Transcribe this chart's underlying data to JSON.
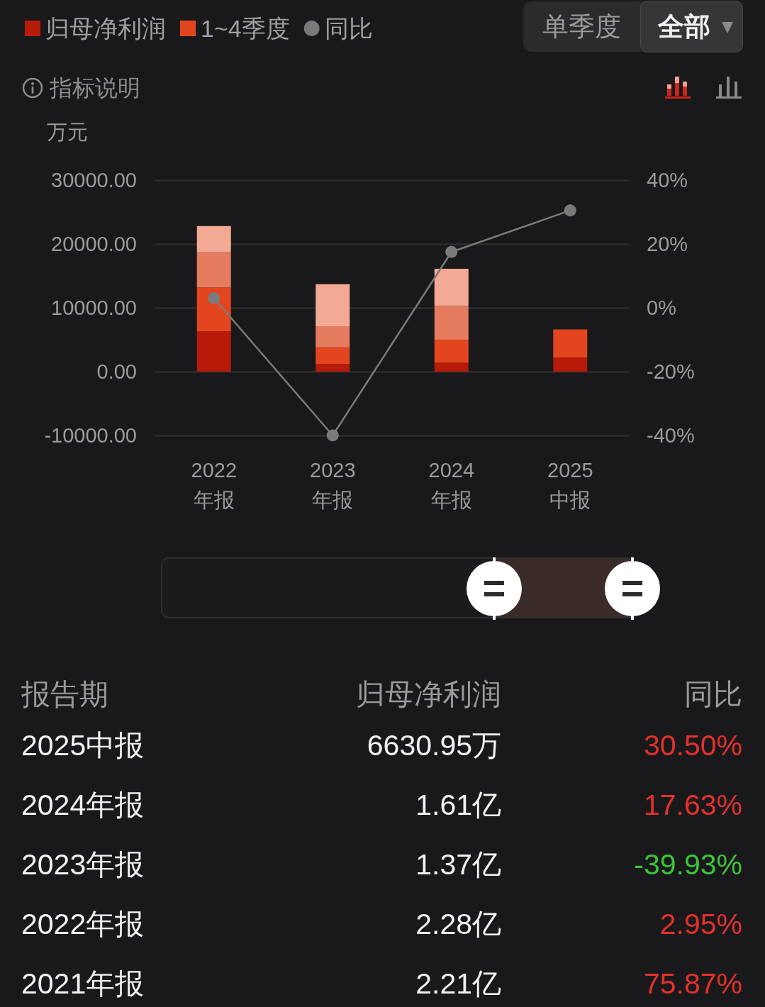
{
  "chart_data": [
    {
      "type": "bar",
      "stacked": true,
      "ylabel": "万元",
      "annotations": [
        "指标说明",
        "单季度",
        "全部"
      ],
      "categories": [
        "2022\n年报",
        "2023\n年报",
        "2024\n年报",
        "2025\n中报"
      ],
      "series": [
        {
          "name": "归母净利润",
          "color": "#b81a0a",
          "values": [
            6300,
            1200,
            1400,
            2200
          ]
        },
        {
          "name": "1~4季度",
          "color": "#e3461e",
          "values": [
            6900,
            2600,
            3600,
            4400
          ]
        },
        {
          "color": "#e57b5f",
          "values": [
            5500,
            3300,
            5300,
            null
          ]
        },
        {
          "color": "#f3aa95",
          "values": [
            4100,
            6600,
            5800,
            null
          ]
        },
        {
          "name": "同比",
          "type": "line",
          "axis": "y2",
          "color": "#7a7a7a",
          "values": [
            3,
            -40,
            17.5,
            30.5
          ]
        }
      ],
      "ylim": [
        -10000,
        30000
      ],
      "yticks": [
        {
          "value": -10000,
          "label": "-10000.00"
        },
        {
          "value": 0,
          "label": "0.00"
        },
        {
          "value": 10000,
          "label": "10000.00"
        },
        {
          "value": 20000,
          "label": "20000.00"
        },
        {
          "value": 30000,
          "label": "30000.00"
        }
      ],
      "y2lim": [
        -40,
        40
      ],
      "y2ticks": [
        {
          "value": -40,
          "label": "-40%"
        },
        {
          "value": -20,
          "label": "-20%"
        },
        {
          "value": 0,
          "label": "0%"
        },
        {
          "value": 20,
          "label": "20%"
        },
        {
          "value": 40,
          "label": "40%"
        }
      ],
      "grid": "y",
      "legend": "top left",
      "marker": "circle"
    },
    {
      "type": "heatmap",
      "ylabel": "报告期",
      "categories": [
        "归母净利润",
        "同比"
      ],
      "y_categories": [
        "2025中报",
        "2024年报",
        "2023年报",
        "2022年报",
        "2021年报"
      ],
      "cells": [
        [
          null,
          30.5
        ],
        [
          null,
          17.63
        ],
        [
          null,
          -39.93
        ],
        [
          null,
          2.95
        ],
        [
          null,
          75.87
        ]
      ],
      "cell_labels": [
        [
          "6630.95万",
          "30.50%"
        ],
        [
          "1.61亿",
          "17.63%"
        ],
        [
          "1.37亿",
          "-39.93%"
        ],
        [
          "2.28亿",
          "2.95%"
        ],
        [
          "2.21亿",
          "75.87%"
        ]
      ]
    }
  ]
}
